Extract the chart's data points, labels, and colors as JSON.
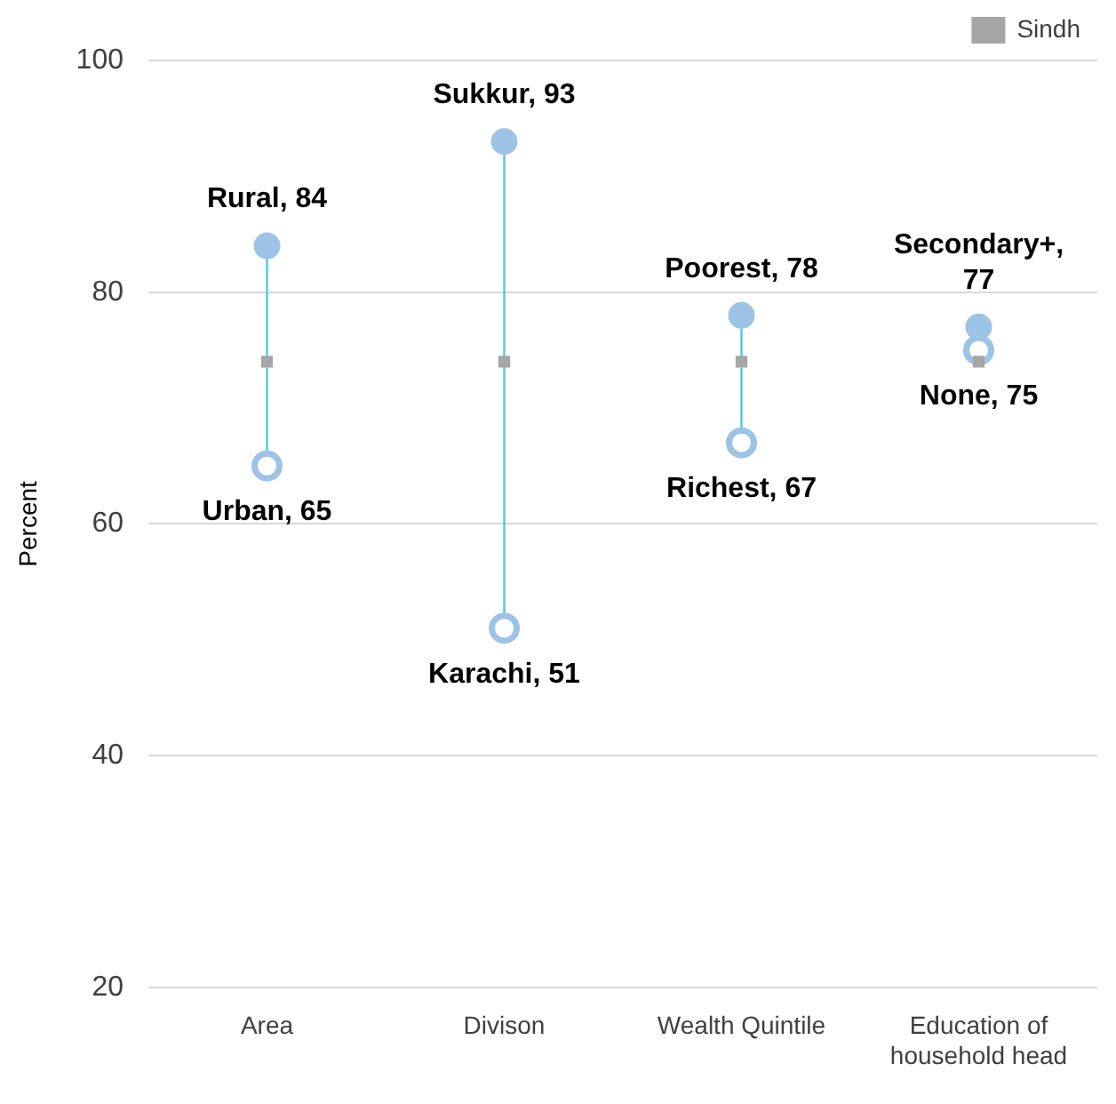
{
  "chart_data": {
    "type": "scatter",
    "ylabel": "Percent",
    "categories": [
      "Area",
      "Divison",
      "Wealth Quintile",
      "Education of household head"
    ],
    "series": [
      {
        "color": "#9dc3e6",
        "marker": "circle",
        "values": [
          84,
          93,
          78,
          77
        ],
        "value_labels": [
          "Rural, 84",
          "Sukkur, 93",
          "Poorest, 78",
          "Secondary+, 77"
        ]
      },
      {
        "color": "#9dc3e6",
        "marker": "open-circle",
        "values": [
          65,
          51,
          67,
          75
        ],
        "value_labels": [
          "Urban, 65",
          "Karachi, 51",
          "Richest, 67",
          "None, 75"
        ]
      },
      {
        "name": "Sindh",
        "color": "#a6a6a6",
        "marker": "square",
        "values": [
          74,
          74,
          74,
          74
        ]
      }
    ],
    "ylim": [
      20,
      100
    ],
    "yticks": [
      20,
      40,
      60,
      80,
      100
    ],
    "grid": "y",
    "legend": "top right"
  }
}
